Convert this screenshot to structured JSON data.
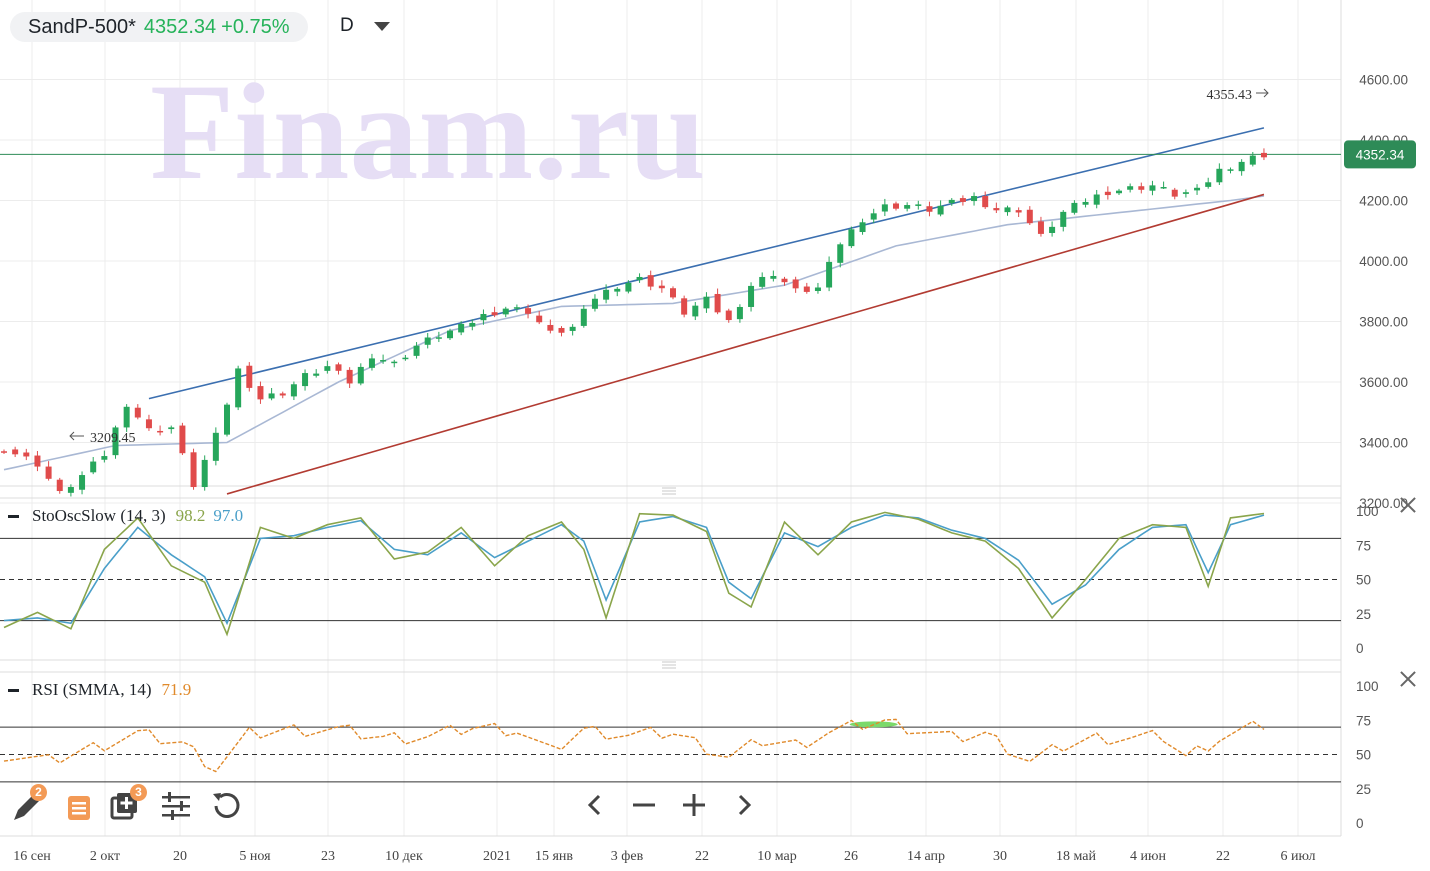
{
  "header": {
    "symbol": "SandP-500*",
    "price": "4352.34",
    "change": "+0.75%",
    "timeframe": "D"
  },
  "watermark": "Finam.ru",
  "colors": {
    "up": "#26a65b",
    "down": "#e04b4b",
    "upper_channel": "#3b6fb0",
    "lower_channel": "#b23b32",
    "ma": "#a9b8d4",
    "price_line": "#2e8b57",
    "sto_k": "#8aa54b",
    "sto_d": "#4a9fc9",
    "rsi": "#e08a2b"
  },
  "price_axis": {
    "ticks": [
      "4600.00",
      "4400.00",
      "4200.00",
      "4000.00",
      "3800.00",
      "3600.00",
      "3400.00",
      "3200.00"
    ],
    "last_price_label": "4352.34",
    "high_marker": "4355.43",
    "low_marker": "3209.45"
  },
  "x_axis": {
    "labels": [
      "16 сен",
      "2 окт",
      "20",
      "5 ноя",
      "23",
      "10 дек",
      "2021",
      "15 янв",
      "3 фев",
      "22",
      "10 мар",
      "26",
      "14 апр",
      "30",
      "18 май",
      "4 июн",
      "22",
      "6 июл"
    ]
  },
  "stochastic": {
    "title": "StoOscSlow (14, 3)",
    "k_value": "98.2",
    "d_value": "97.0",
    "ticks": [
      "100",
      "75",
      "50",
      "25",
      "0"
    ]
  },
  "rsi": {
    "title": "RSI (SMMA, 14)",
    "value": "71.9",
    "ticks": [
      "100",
      "75",
      "50",
      "25",
      "0"
    ]
  },
  "toolbar": {
    "draw_badge": "2",
    "layers_badge": "3"
  },
  "chart_data": {
    "type": "candlestick",
    "ylim": [
      3150,
      4650
    ],
    "grid": true,
    "anchors": [
      [
        0,
        3380
      ],
      [
        3,
        3330
      ],
      [
        5,
        3230
      ],
      [
        7,
        3290
      ],
      [
        9,
        3360
      ],
      [
        11,
        3530
      ],
      [
        13,
        3440
      ],
      [
        15,
        3450
      ],
      [
        17,
        3260
      ],
      [
        19,
        3420
      ],
      [
        21,
        3640
      ],
      [
        23,
        3545
      ],
      [
        25,
        3565
      ],
      [
        27,
        3620
      ],
      [
        29,
        3650
      ],
      [
        31,
        3600
      ],
      [
        33,
        3690
      ],
      [
        35,
        3660
      ],
      [
        37,
        3720
      ],
      [
        39,
        3755
      ],
      [
        41,
        3780
      ],
      [
        43,
        3820
      ],
      [
        45,
        3845
      ],
      [
        47,
        3835
      ],
      [
        49,
        3760
      ],
      [
        51,
        3780
      ],
      [
        53,
        3880
      ],
      [
        55,
        3920
      ],
      [
        57,
        3940
      ],
      [
        59,
        3910
      ],
      [
        61,
        3830
      ],
      [
        63,
        3870
      ],
      [
        65,
        3800
      ],
      [
        67,
        3920
      ],
      [
        69,
        3960
      ],
      [
        71,
        3900
      ],
      [
        73,
        3910
      ],
      [
        75,
        4060
      ],
      [
        77,
        4140
      ],
      [
        79,
        4180
      ],
      [
        81,
        4185
      ],
      [
        83,
        4170
      ],
      [
        85,
        4190
      ],
      [
        87,
        4210
      ],
      [
        89,
        4170
      ],
      [
        91,
        4170
      ],
      [
        93,
        4080
      ],
      [
        95,
        4160
      ],
      [
        97,
        4200
      ],
      [
        99,
        4230
      ],
      [
        101,
        4240
      ],
      [
        103,
        4250
      ],
      [
        105,
        4220
      ],
      [
        107,
        4230
      ],
      [
        109,
        4300
      ],
      [
        111,
        4330
      ],
      [
        113,
        4352.34
      ]
    ],
    "ma_anchors": [
      [
        0,
        3310
      ],
      [
        10,
        3390
      ],
      [
        20,
        3400
      ],
      [
        30,
        3600
      ],
      [
        40,
        3770
      ],
      [
        50,
        3850
      ],
      [
        60,
        3860
      ],
      [
        70,
        3920
      ],
      [
        80,
        4050
      ],
      [
        90,
        4120
      ],
      [
        100,
        4160
      ],
      [
        110,
        4200
      ],
      [
        113,
        4215
      ]
    ],
    "upper_channel": [
      [
        13,
        3545
      ],
      [
        113,
        4440
      ]
    ],
    "lower_channel": [
      [
        20,
        3230
      ],
      [
        113,
        4220
      ]
    ],
    "stoch_k_anchors": [
      [
        0,
        15
      ],
      [
        3,
        26
      ],
      [
        6,
        14
      ],
      [
        9,
        72
      ],
      [
        12,
        95
      ],
      [
        15,
        60
      ],
      [
        18,
        48
      ],
      [
        20,
        10
      ],
      [
        23,
        88
      ],
      [
        26,
        80
      ],
      [
        29,
        90
      ],
      [
        32,
        95
      ],
      [
        35,
        65
      ],
      [
        38,
        70
      ],
      [
        41,
        88
      ],
      [
        44,
        60
      ],
      [
        47,
        82
      ],
      [
        50,
        92
      ],
      [
        52,
        72
      ],
      [
        54,
        22
      ],
      [
        57,
        98
      ],
      [
        60,
        97
      ],
      [
        63,
        85
      ],
      [
        65,
        40
      ],
      [
        67,
        30
      ],
      [
        70,
        92
      ],
      [
        73,
        68
      ],
      [
        76,
        92
      ],
      [
        79,
        99
      ],
      [
        82,
        94
      ],
      [
        85,
        84
      ],
      [
        88,
        78
      ],
      [
        91,
        58
      ],
      [
        94,
        22
      ],
      [
        97,
        50
      ],
      [
        100,
        80
      ],
      [
        103,
        90
      ],
      [
        106,
        88
      ],
      [
        108,
        45
      ],
      [
        110,
        95
      ],
      [
        113,
        98.2
      ]
    ],
    "stoch_d_anchors": [
      [
        0,
        20
      ],
      [
        3,
        22
      ],
      [
        6,
        18
      ],
      [
        9,
        58
      ],
      [
        12,
        88
      ],
      [
        15,
        68
      ],
      [
        18,
        52
      ],
      [
        20,
        18
      ],
      [
        23,
        80
      ],
      [
        26,
        82
      ],
      [
        29,
        88
      ],
      [
        32,
        93
      ],
      [
        35,
        72
      ],
      [
        38,
        68
      ],
      [
        41,
        84
      ],
      [
        44,
        66
      ],
      [
        47,
        78
      ],
      [
        50,
        90
      ],
      [
        52,
        78
      ],
      [
        54,
        35
      ],
      [
        57,
        92
      ],
      [
        60,
        96
      ],
      [
        63,
        88
      ],
      [
        65,
        48
      ],
      [
        67,
        36
      ],
      [
        70,
        84
      ],
      [
        73,
        74
      ],
      [
        76,
        88
      ],
      [
        79,
        97
      ],
      [
        82,
        95
      ],
      [
        85,
        86
      ],
      [
        88,
        80
      ],
      [
        91,
        64
      ],
      [
        94,
        32
      ],
      [
        97,
        46
      ],
      [
        100,
        72
      ],
      [
        103,
        88
      ],
      [
        106,
        90
      ],
      [
        108,
        55
      ],
      [
        110,
        90
      ],
      [
        113,
        97
      ]
    ],
    "rsi_anchors": [
      [
        0,
        50
      ],
      [
        4,
        45
      ],
      [
        8,
        55
      ],
      [
        12,
        65
      ],
      [
        16,
        58
      ],
      [
        19,
        40
      ],
      [
        22,
        65
      ],
      [
        26,
        68
      ],
      [
        30,
        68
      ],
      [
        34,
        62
      ],
      [
        38,
        63
      ],
      [
        42,
        70
      ],
      [
        46,
        68
      ],
      [
        49,
        52
      ],
      [
        52,
        68
      ],
      [
        56,
        64
      ],
      [
        60,
        66
      ],
      [
        63,
        55
      ],
      [
        65,
        48
      ],
      [
        68,
        60
      ],
      [
        71,
        57
      ],
      [
        74,
        66
      ],
      [
        77,
        72
      ],
      [
        79,
        74
      ],
      [
        82,
        68
      ],
      [
        85,
        62
      ],
      [
        88,
        65
      ],
      [
        90,
        55
      ],
      [
        92,
        45
      ],
      [
        95,
        56
      ],
      [
        98,
        62
      ],
      [
        101,
        62
      ],
      [
        104,
        63
      ],
      [
        106,
        48
      ],
      [
        109,
        62
      ],
      [
        113,
        71.9
      ]
    ]
  }
}
